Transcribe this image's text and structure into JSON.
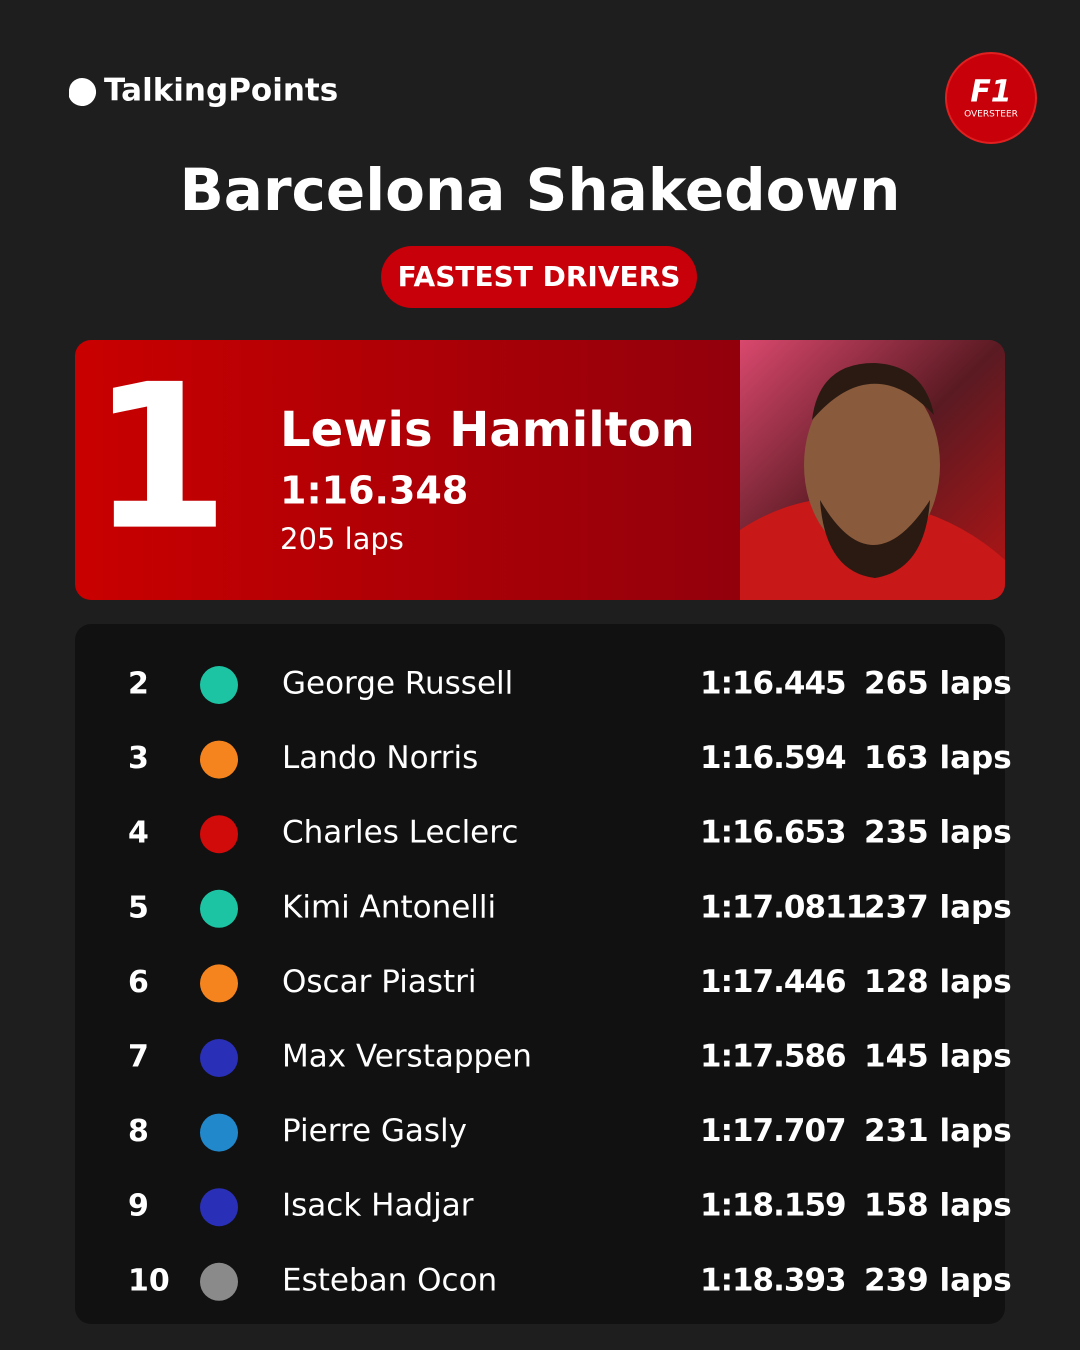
{
  "brand": "TalkingPoints",
  "logo": {
    "mark": "F1",
    "caption": "OVERSTEER"
  },
  "title": "Barcelona Shakedown",
  "badge": "FASTEST DRIVERS",
  "winner": {
    "position": "1",
    "name": "Lewis Hamilton",
    "time": "1:16.348",
    "laps": "205 laps"
  },
  "table": {
    "rows": [
      {
        "position": "2",
        "color": "#1cc4a4",
        "name": "George Russell",
        "time": "1:16.445",
        "laps": "265 laps"
      },
      {
        "position": "3",
        "color": "#f5841f",
        "name": "Lando Norris",
        "time": "1:16.594",
        "laps": "163 laps"
      },
      {
        "position": "4",
        "color": "#d10a0a",
        "name": "Charles Leclerc",
        "time": "1:16.653",
        "laps": "235 laps"
      },
      {
        "position": "5",
        "color": "#1cc4a4",
        "name": "Kimi Antonelli",
        "time": "1:17.0811",
        "laps": "237 laps"
      },
      {
        "position": "6",
        "color": "#f5841f",
        "name": "Oscar Piastri",
        "time": "1:17.446",
        "laps": "128 laps"
      },
      {
        "position": "7",
        "color": "#2a2fb8",
        "name": "Max Verstappen",
        "time": "1:17.586",
        "laps": "145 laps"
      },
      {
        "position": "8",
        "color": "#2288cc",
        "name": "Pierre Gasly",
        "time": "1:17.707",
        "laps": "231 laps"
      },
      {
        "position": "9",
        "color": "#2a2fb8",
        "name": "Isack Hadjar",
        "time": "1:18.159",
        "laps": "158 laps"
      },
      {
        "position": "10",
        "color": "#8a8a8a",
        "name": "Esteban Ocon",
        "time": "1:18.393",
        "laps": "239 laps"
      }
    ]
  }
}
